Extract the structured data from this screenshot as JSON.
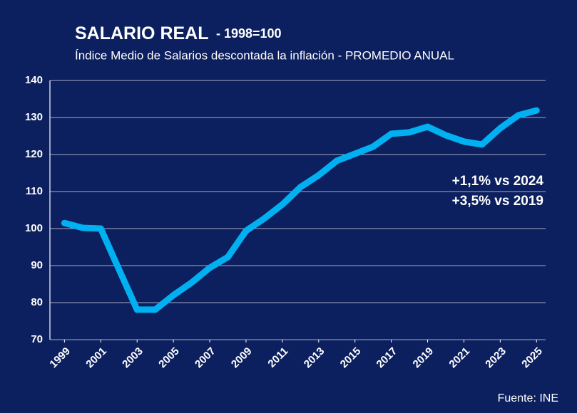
{
  "chart_data": {
    "type": "line",
    "title": "SALARIO REAL",
    "title_note": "- 1998=100",
    "subtitle": "Índice Medio de Salarios descontada la inflación - PROMEDIO ANUAL",
    "annotations": [
      "+1,1% vs 2024",
      "+3,5% vs 2019"
    ],
    "source": "Fuente: INE",
    "x": [
      1999,
      2000,
      2001,
      2002,
      2003,
      2004,
      2005,
      2006,
      2007,
      2008,
      2009,
      2010,
      2011,
      2012,
      2013,
      2014,
      2015,
      2016,
      2017,
      2018,
      2019,
      2020,
      2021,
      2022,
      2023,
      2024,
      2025
    ],
    "series": [
      {
        "color": "#00b0f0",
        "values": [
          101.5,
          100.2,
          100,
          89,
          78.1,
          78.1,
          82,
          85.4,
          89.4,
          92.3,
          99.4,
          102.7,
          106.5,
          111.2,
          114.4,
          118.3,
          120.2,
          122.1,
          125.6,
          126,
          127.5,
          125.2,
          123.5,
          122.7,
          127.1,
          130.6,
          131.9
        ]
      }
    ],
    "xlim": [
      1998.2,
      2025.5
    ],
    "xticks": [
      1999,
      2001,
      2003,
      2005,
      2007,
      2009,
      2011,
      2013,
      2015,
      2017,
      2019,
      2021,
      2023,
      2025
    ],
    "ylim": [
      70,
      140
    ],
    "yticks": [
      70,
      80,
      90,
      100,
      110,
      120,
      130,
      140
    ],
    "grid": true
  }
}
